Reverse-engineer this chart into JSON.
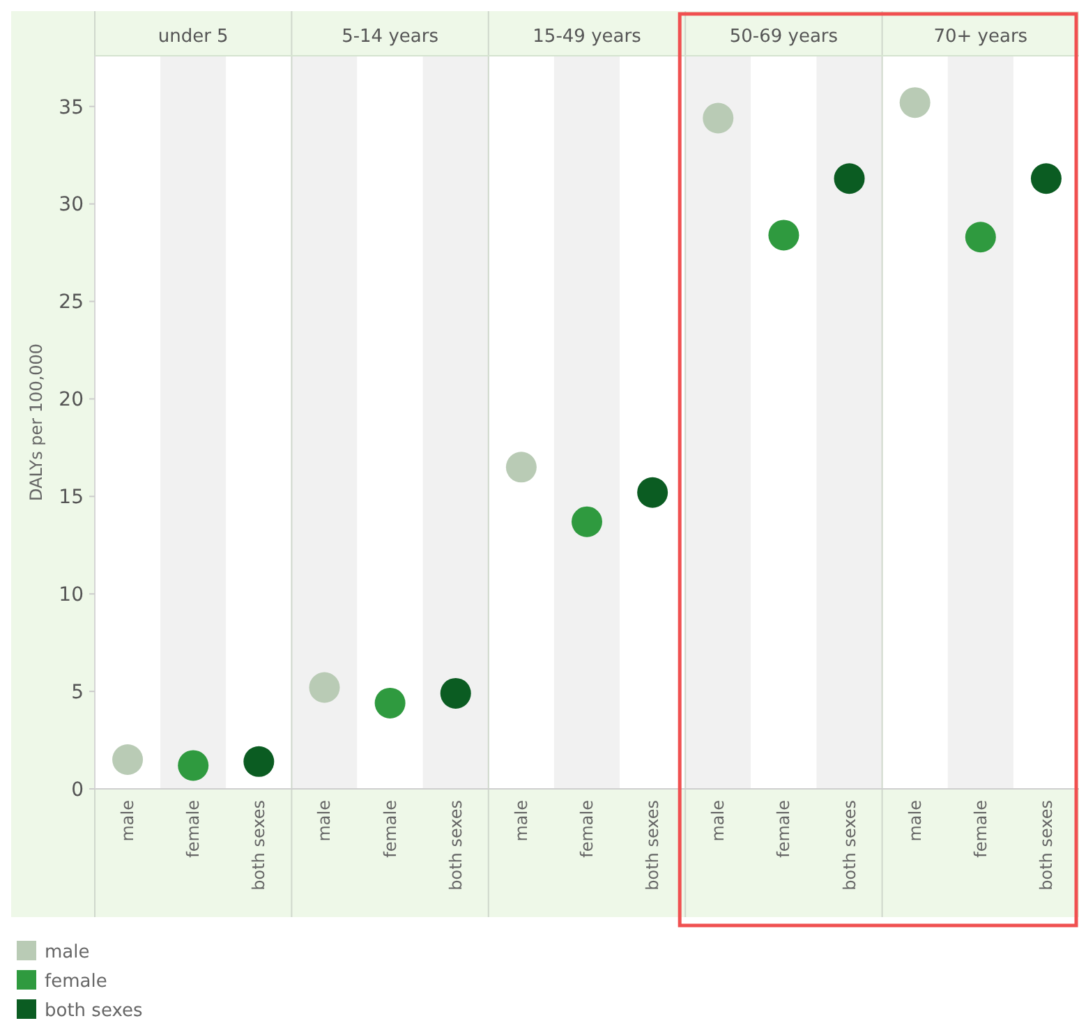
{
  "chart_data": {
    "type": "scatter",
    "ylabel": "DALYs per 100,000",
    "categories": [
      "male",
      "female",
      "both sexes",
      "male",
      "female",
      "both sexes",
      "male",
      "female",
      "both sexes",
      "male",
      "female",
      "both sexes",
      "male",
      "female",
      "both sexes"
    ],
    "annotations": [
      "under 5",
      "5-14 years",
      "15-49 years",
      "50-69 years",
      "70+ years"
    ],
    "series": [
      {
        "name": "male",
        "color": "#b9cbb5",
        "values": [
          1.5,
          null,
          null,
          5.2,
          null,
          null,
          16.5,
          null,
          null,
          34.4,
          null,
          null,
          35.2,
          null,
          null
        ]
      },
      {
        "name": "female",
        "color": "#2f9a3f",
        "values": [
          null,
          1.2,
          null,
          null,
          4.4,
          null,
          null,
          13.7,
          null,
          null,
          28.4,
          null,
          null,
          28.3,
          null
        ]
      },
      {
        "name": "both sexes",
        "color": "#0b5c22",
        "values": [
          null,
          null,
          1.4,
          null,
          null,
          4.9,
          null,
          null,
          15.2,
          null,
          null,
          31.3,
          null,
          null,
          31.3
        ]
      }
    ],
    "ylim": [
      0,
      37.6
    ],
    "yticks": [
      0,
      5,
      10,
      15,
      20,
      25,
      30,
      35
    ],
    "grid": false,
    "marker": "circle",
    "legend": "bottom"
  }
}
